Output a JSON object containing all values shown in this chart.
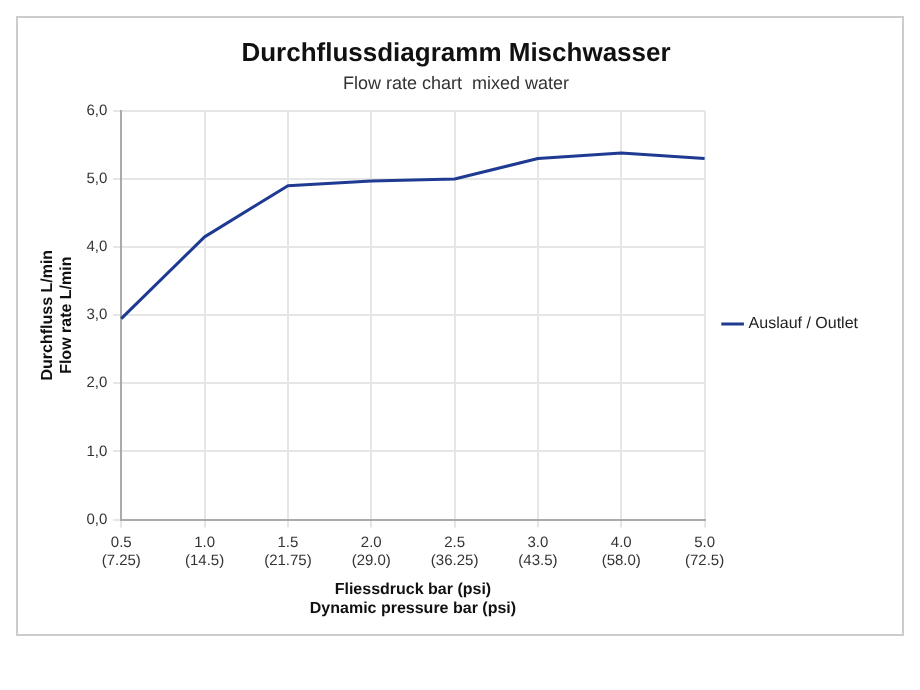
{
  "chart_data": {
    "type": "line",
    "title": "Durchflussdiagramm Mischwasser",
    "subtitle": "Flow rate chart  mixed water",
    "xlabel": "Fliessdruck bar (psi)\nDynamic pressure bar (psi)",
    "ylabel": "Durchfluss L/min\nFlow rate L/min",
    "categories": [
      "0.5\n(7.25)",
      "1.0\n(14.5)",
      "1.5\n(21.75)",
      "2.0\n(29.0)",
      "2.5\n(36.25)",
      "3.0\n(43.5)",
      "4.0\n(58.0)",
      "5.0\n(72.5)"
    ],
    "series": [
      {
        "name": "Auslauf / Outlet",
        "color": "#1f3a93",
        "values": [
          2.95,
          4.15,
          4.9,
          4.97,
          5.0,
          5.3,
          5.38,
          5.3
        ]
      }
    ],
    "ylim": [
      0,
      6
    ],
    "yticks": [
      {
        "value": 0,
        "label": "0,0"
      },
      {
        "value": 1,
        "label": "1,0"
      },
      {
        "value": 2,
        "label": "2,0"
      },
      {
        "value": 3,
        "label": "3,0"
      },
      {
        "value": 4,
        "label": "4,0"
      },
      {
        "value": 5,
        "label": "5,0"
      },
      {
        "value": 6,
        "label": "6,0"
      }
    ],
    "grid": true,
    "legend": "right",
    "marker": "none",
    "line_style": "solid"
  }
}
